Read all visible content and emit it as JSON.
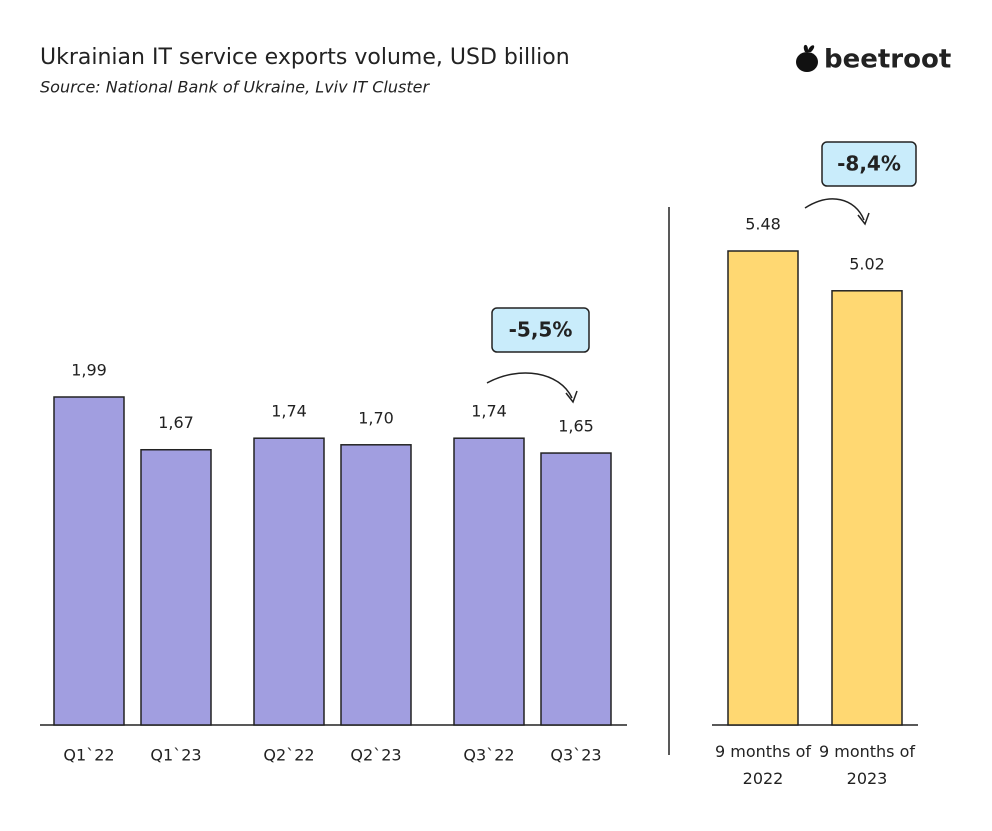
{
  "logo": "beetroot",
  "chart_data": [
    {
      "type": "bar",
      "title": "Ukrainian IT service exports volume, USD billion",
      "subtitle": "Source: National Bank of Ukraine, Lviv IT Cluster",
      "categories": [
        "Q1`22",
        "Q1`23",
        "Q2`22",
        "Q2`23",
        "Q3`22",
        "Q3`23"
      ],
      "values": [
        1.99,
        1.67,
        1.74,
        1.7,
        1.74,
        1.65
      ],
      "value_labels": [
        "1,99",
        "1,67",
        "1,74",
        "1,70",
        "1,74",
        "1,65"
      ],
      "color": "#a19ee0",
      "annotation": "-5,5%"
    },
    {
      "type": "bar",
      "categories": [
        "9 months of 2022",
        "9 months of 2023"
      ],
      "values": [
        5.48,
        5.02
      ],
      "color": "#ffd872",
      "annotation": "-8,4%"
    }
  ]
}
